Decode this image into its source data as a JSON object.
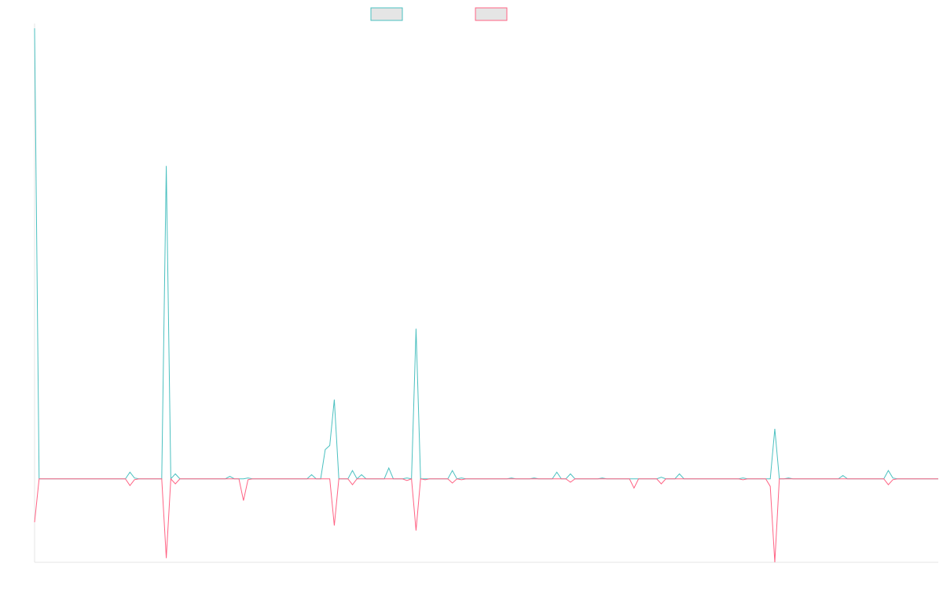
{
  "chart_data": {
    "type": "line",
    "title": "",
    "xlabel": "",
    "ylabel": "",
    "grid": false,
    "legend_position": "top-center",
    "x_points": 200,
    "ylim": [
      -100,
      540
    ],
    "colors": {
      "series_a": "#4bc0c0",
      "series_b": "#ff6384",
      "legend_fill": "#e5e5e5",
      "axis": "#e6e6e6"
    },
    "series": [
      {
        "name": "",
        "color": "#4bc0c0",
        "spikes": [
          [
            0,
            540
          ],
          [
            21,
            8
          ],
          [
            22,
            1
          ],
          [
            29,
            375
          ],
          [
            31,
            6
          ],
          [
            43,
            3
          ],
          [
            47,
            1
          ],
          [
            61,
            5
          ],
          [
            64,
            35
          ],
          [
            65,
            40
          ],
          [
            66,
            95
          ],
          [
            70,
            10
          ],
          [
            72,
            5
          ],
          [
            78,
            13
          ],
          [
            82,
            1
          ],
          [
            84,
            180
          ],
          [
            92,
            10
          ],
          [
            94,
            1
          ],
          [
            105,
            1
          ],
          [
            110,
            1
          ],
          [
            115,
            8
          ],
          [
            118,
            6
          ],
          [
            125,
            1
          ],
          [
            138,
            2
          ],
          [
            142,
            6
          ],
          [
            156,
            1
          ],
          [
            163,
            60
          ],
          [
            166,
            1
          ],
          [
            178,
            4
          ],
          [
            188,
            10
          ],
          [
            189,
            1
          ],
          [
            202,
            3
          ]
        ]
      },
      {
        "name": "",
        "color": "#ff6384",
        "spikes": [
          [
            0,
            -52
          ],
          [
            21,
            -8
          ],
          [
            22,
            -1
          ],
          [
            29,
            -95
          ],
          [
            31,
            -6
          ],
          [
            46,
            -26
          ],
          [
            47,
            -1
          ],
          [
            66,
            -56
          ],
          [
            70,
            -7
          ],
          [
            82,
            -2
          ],
          [
            84,
            -62
          ],
          [
            86,
            -1
          ],
          [
            92,
            -5
          ],
          [
            94,
            -1
          ],
          [
            118,
            -4
          ],
          [
            132,
            -11
          ],
          [
            138,
            -6
          ],
          [
            156,
            -1
          ],
          [
            162,
            -9
          ],
          [
            163,
            -100
          ],
          [
            188,
            -7
          ],
          [
            189,
            -1
          ],
          [
            202,
            -3
          ]
        ]
      }
    ]
  }
}
